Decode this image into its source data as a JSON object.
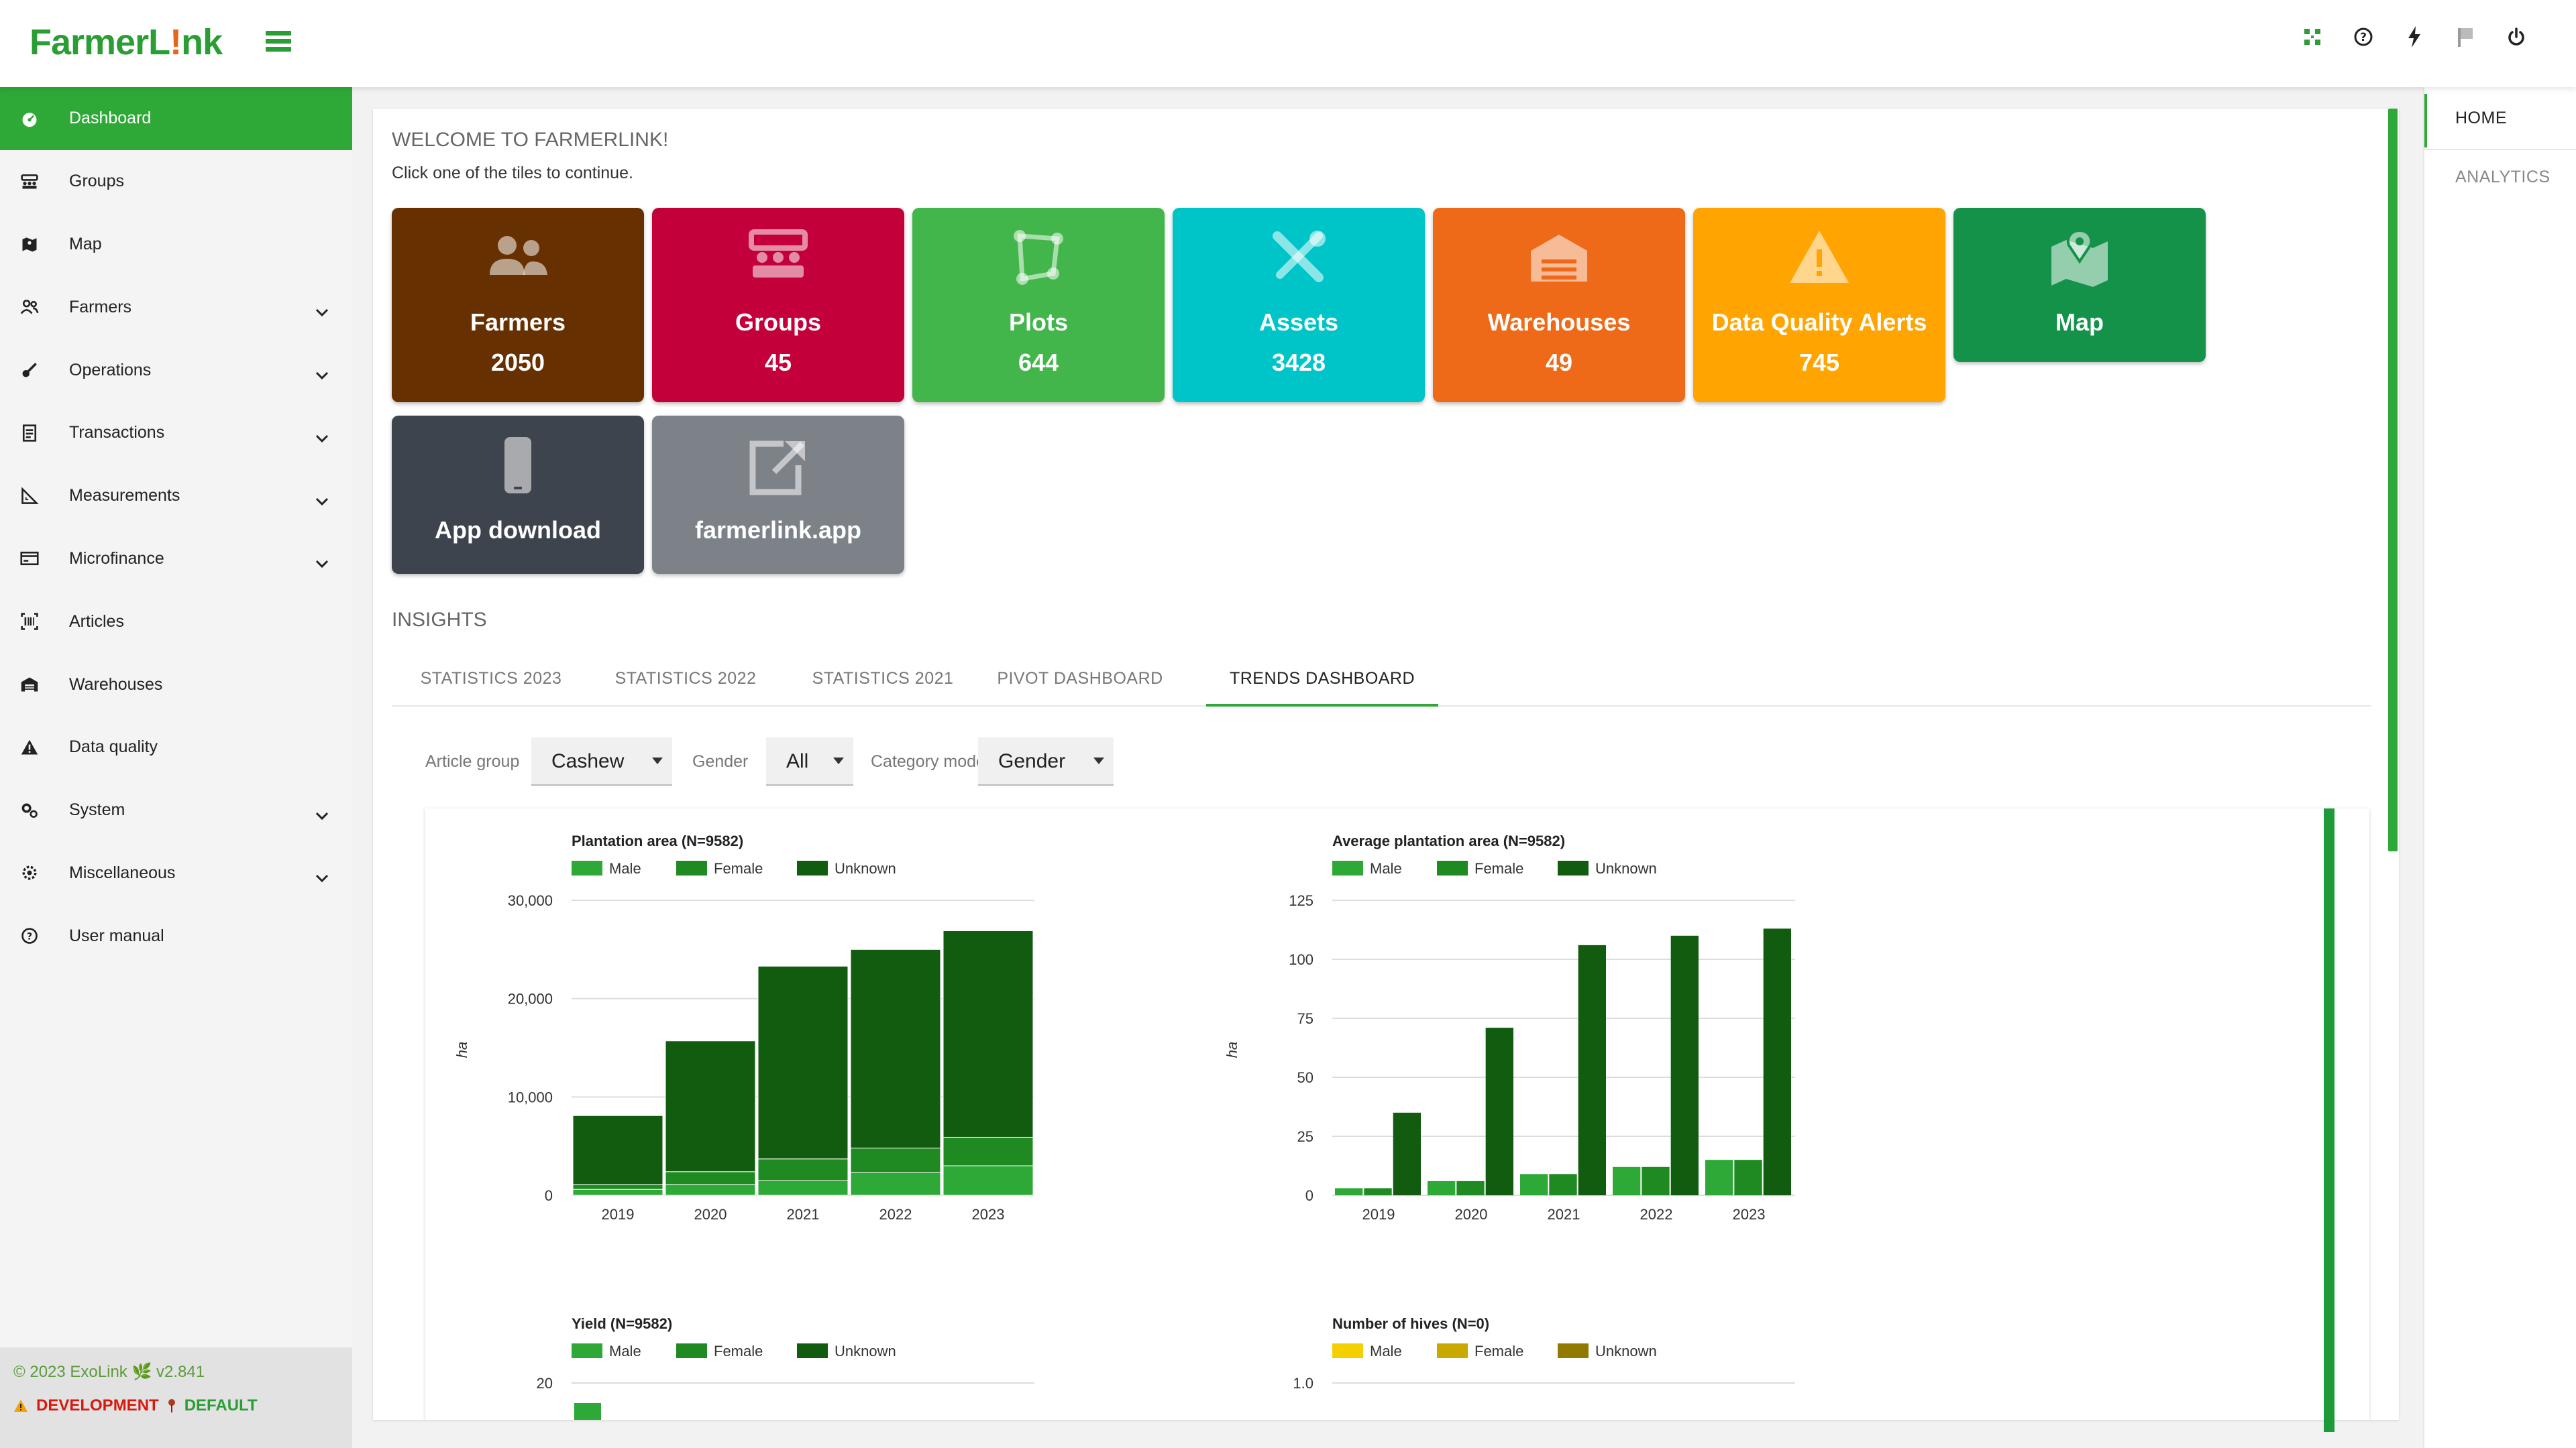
{
  "app": {
    "logo_part1": "Farmer",
    "logo_part2": "L",
    "logo_part3": "!",
    "logo_part4": "nk"
  },
  "topbar": {
    "icons": [
      "qr-code-icon",
      "help-icon",
      "bolt-icon",
      "flag-icon",
      "power-icon"
    ]
  },
  "sidebar": {
    "items": [
      {
        "label": "Dashboard",
        "icon": "dashboard-icon",
        "expandable": false,
        "active": true
      },
      {
        "label": "Groups",
        "icon": "groups-icon",
        "expandable": false
      },
      {
        "label": "Map",
        "icon": "map-icon",
        "expandable": false
      },
      {
        "label": "Farmers",
        "icon": "farmers-icon",
        "expandable": true
      },
      {
        "label": "Operations",
        "icon": "operations-icon",
        "expandable": true
      },
      {
        "label": "Transactions",
        "icon": "transactions-icon",
        "expandable": true
      },
      {
        "label": "Measurements",
        "icon": "measurements-icon",
        "expandable": true
      },
      {
        "label": "Microfinance",
        "icon": "microfinance-icon",
        "expandable": true
      },
      {
        "label": "Articles",
        "icon": "articles-icon",
        "expandable": false
      },
      {
        "label": "Warehouses",
        "icon": "warehouse-icon",
        "expandable": false
      },
      {
        "label": "Data quality",
        "icon": "warning-icon",
        "expandable": false
      },
      {
        "label": "System",
        "icon": "system-icon",
        "expandable": true
      },
      {
        "label": "Miscellaneous",
        "icon": "misc-icon",
        "expandable": true
      },
      {
        "label": "User manual",
        "icon": "help-icon",
        "expandable": false
      }
    ],
    "footer": {
      "copyright": "© 2023 ExoLink",
      "version": "v2.841",
      "env_dev": "DEVELOPMENT",
      "env_default": "DEFAULT"
    }
  },
  "rightpanel": {
    "home": "HOME",
    "analytics": "ANALYTICS"
  },
  "welcome": {
    "title": "WELCOME TO FARMERLINK!",
    "subtitle": "Click one of the tiles to continue."
  },
  "tiles": [
    {
      "label": "Farmers",
      "count": "2050",
      "color": "#673000",
      "icon": "farmers-icon"
    },
    {
      "label": "Groups",
      "count": "45",
      "color": "#c4003a",
      "icon": "groups-icon"
    },
    {
      "label": "Plots",
      "count": "644",
      "color": "#42b64b",
      "icon": "plots-icon"
    },
    {
      "label": "Assets",
      "count": "3428",
      "color": "#00c5c8",
      "icon": "tools-icon"
    },
    {
      "label": "Warehouses",
      "count": "49",
      "color": "#ee6a19",
      "icon": "warehouse-icon"
    },
    {
      "label": "Data Quality Alerts",
      "count": "745",
      "color": "#ffa400",
      "icon": "warning-icon"
    },
    {
      "label": "Map",
      "count": "",
      "color": "#159249",
      "icon": "map-icon"
    },
    {
      "label": "App download",
      "count": "",
      "color": "#3e444d",
      "icon": "phone-icon"
    },
    {
      "label": "farmerlink.app",
      "count": "",
      "color": "#7d8188",
      "icon": "external-link-icon"
    }
  ],
  "insights": {
    "title": "INSIGHTS",
    "tabs": [
      "STATISTICS 2023",
      "STATISTICS 2022",
      "STATISTICS 2021",
      "PIVOT DASHBOARD",
      "TRENDS DASHBOARD"
    ],
    "active_tab": 4
  },
  "filters": {
    "article_group_label": "Article group",
    "article_group_value": "Cashew",
    "gender_label": "Gender",
    "gender_value": "All",
    "category_mode_label": "Category mode",
    "category_mode_value": "Gender"
  },
  "chart_data": [
    {
      "type": "bar",
      "stacked": true,
      "title": "Plantation area (N=9582)",
      "ylabel": "ha",
      "categories": [
        "2019",
        "2020",
        "2021",
        "2022",
        "2023"
      ],
      "ylim": [
        0,
        30000
      ],
      "yticks": [
        "0",
        "10,000",
        "20,000",
        "30,000"
      ],
      "series": [
        {
          "name": "Male",
          "color": "#2ea836",
          "values": [
            600,
            1100,
            1500,
            2300,
            3000
          ]
        },
        {
          "name": "Female",
          "color": "#1f8a22",
          "values": [
            500,
            1300,
            2200,
            2500,
            2900
          ]
        },
        {
          "name": "Unknown",
          "color": "#125c10",
          "values": [
            7000,
            13300,
            19600,
            20200,
            21000
          ]
        }
      ]
    },
    {
      "type": "bar",
      "stacked": false,
      "title": "Average plantation area (N=9582)",
      "ylabel": "ha",
      "categories": [
        "2019",
        "2020",
        "2021",
        "2022",
        "2023"
      ],
      "ylim": [
        0,
        125
      ],
      "yticks": [
        "0",
        "25",
        "50",
        "75",
        "100",
        "125"
      ],
      "series": [
        {
          "name": "Male",
          "color": "#2ea836",
          "values": [
            3,
            6,
            9,
            12,
            15
          ]
        },
        {
          "name": "Female",
          "color": "#1f8a22",
          "values": [
            3,
            6,
            9,
            12,
            15
          ]
        },
        {
          "name": "Unknown",
          "color": "#125c10",
          "values": [
            35,
            71,
            106,
            110,
            113
          ]
        }
      ]
    },
    {
      "type": "bar",
      "stacked": false,
      "title": "Yield (N=9582)",
      "ylabel": "",
      "categories": [],
      "ylim": [
        0,
        20
      ],
      "yticks": [
        "20"
      ],
      "series": [
        {
          "name": "Male",
          "color": "#2ea836",
          "values": []
        },
        {
          "name": "Female",
          "color": "#1f8a22",
          "values": []
        },
        {
          "name": "Unknown",
          "color": "#125c10",
          "values": []
        }
      ]
    },
    {
      "type": "bar",
      "stacked": false,
      "title": "Number of hives (N=0)",
      "ylabel": "",
      "categories": [],
      "ylim": [
        0,
        1.0
      ],
      "yticks": [
        "1.0"
      ],
      "series": [
        {
          "name": "Male",
          "color": "#f5d000",
          "values": []
        },
        {
          "name": "Female",
          "color": "#c9a800",
          "values": []
        },
        {
          "name": "Unknown",
          "color": "#927a00",
          "values": []
        }
      ]
    }
  ]
}
